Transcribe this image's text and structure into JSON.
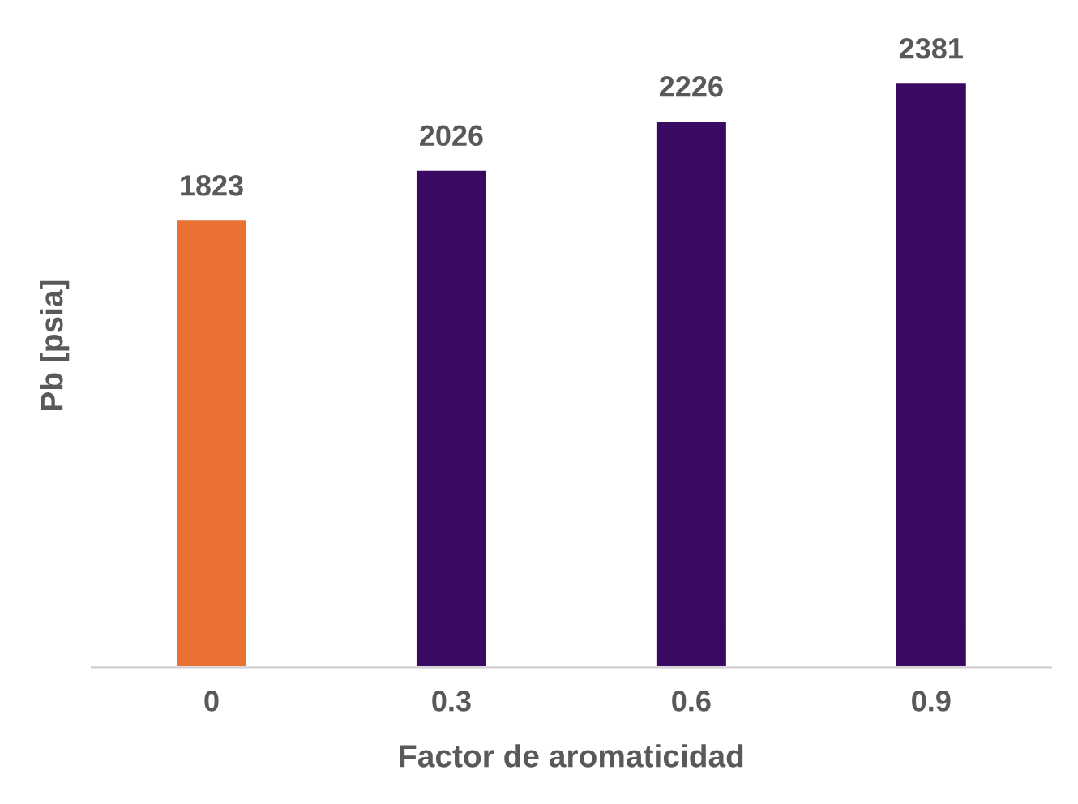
{
  "chart_data": {
    "type": "bar",
    "xlabel": "Factor de aromaticidad",
    "ylabel": "Pb [psia]",
    "categories": [
      "0",
      "0.3",
      "0.6",
      "0.9"
    ],
    "values": [
      1823,
      2026,
      2226,
      2381
    ],
    "colors": [
      "#e97132",
      "#3a0a62",
      "#3a0a62",
      "#3a0a62"
    ],
    "tick_labels": "x",
    "data_labels": true,
    "grid": false,
    "legend": false
  }
}
